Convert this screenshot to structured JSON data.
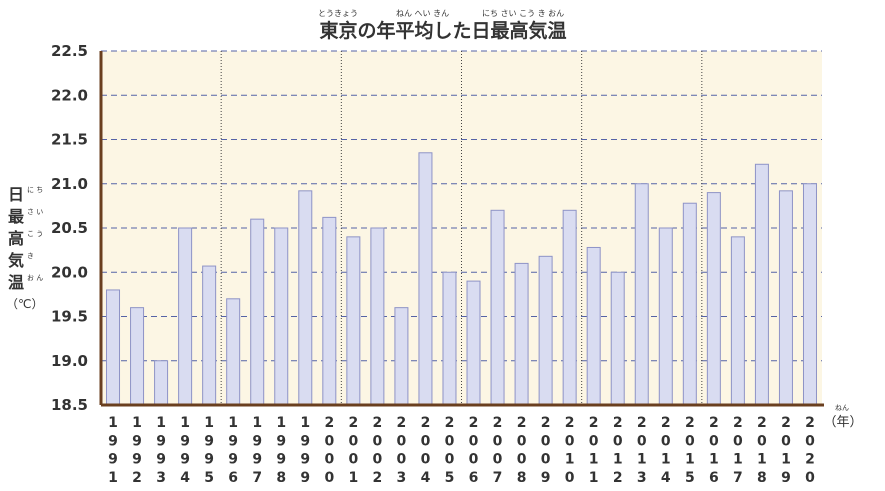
{
  "chart_data": {
    "type": "bar",
    "title": "東京の年平均した日最高気温",
    "title_ruby": {
      "tokyo": "とうきょう",
      "nenheikin": "ねん へい きん",
      "nichisaikoukion": "にち さい こう き おん"
    },
    "ylabel_chars": [
      "日",
      "最",
      "高",
      "気",
      "温"
    ],
    "ylabel_ruby": [
      "に ち",
      "さ い",
      "こ う",
      "き",
      "お ん"
    ],
    "ylabel_unit": "（℃）",
    "xlabel": "（年）",
    "xlabel_ruby": "ねん",
    "ylim": [
      18.5,
      22.5
    ],
    "yticks": [
      "18.5",
      "19.0",
      "19.5",
      "20.0",
      "20.5",
      "21.0",
      "21.5",
      "22.0",
      "22.5"
    ],
    "categories": [
      "1991",
      "1992",
      "1993",
      "1994",
      "1995",
      "1996",
      "1997",
      "1998",
      "1999",
      "2000",
      "2001",
      "2002",
      "2003",
      "2004",
      "2005",
      "2006",
      "2007",
      "2008",
      "2009",
      "2010",
      "2011",
      "2012",
      "2013",
      "2014",
      "2015",
      "2016",
      "2017",
      "2018",
      "2019",
      "2020"
    ],
    "values": [
      19.8,
      19.6,
      19.0,
      20.5,
      20.07,
      19.7,
      20.6,
      20.5,
      20.92,
      20.62,
      20.4,
      20.5,
      19.6,
      21.35,
      20.0,
      19.9,
      20.7,
      20.1,
      20.18,
      20.7,
      20.28,
      20.0,
      21.0,
      20.5,
      20.78,
      20.9,
      20.4,
      21.22,
      20.92,
      21.0
    ],
    "grid": true,
    "colors": {
      "plot_background": "#fcf6e4",
      "bar_fill": "#d9dcf1",
      "bar_stroke": "#8e93c6",
      "gridline": "#5563a6",
      "axis": "#6a3f1f"
    }
  }
}
